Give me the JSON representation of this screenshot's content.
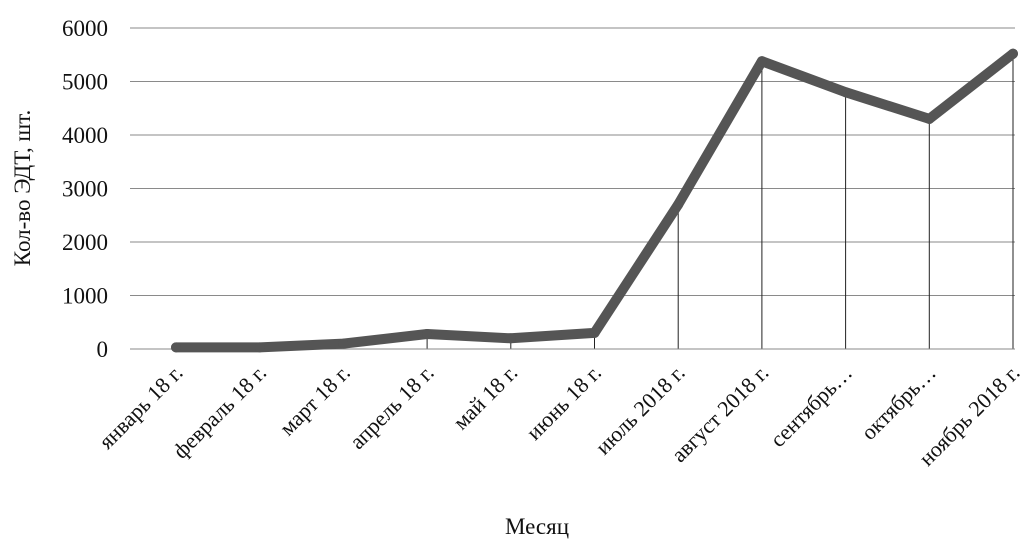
{
  "chart_data": {
    "type": "line",
    "title": "",
    "xlabel": "Месяц",
    "ylabel": "Кол-во ЭДТ, шт.",
    "ylim": [
      0,
      6000
    ],
    "yticks": [
      0,
      1000,
      2000,
      3000,
      4000,
      5000,
      6000
    ],
    "grid": {
      "horizontal": true,
      "drop_lines": true
    },
    "categories": [
      "январь 18 г.",
      "февраль 18 г.",
      "март 18 г.",
      "апрель 18 г.",
      "май 18 г.",
      "июнь 18 г.",
      "июль 2018 г.",
      "август 2018 г.",
      "сентябрь…",
      "октябрь…",
      "ноябрь 2018 г."
    ],
    "series": [
      {
        "values": [
          30,
          30,
          100,
          280,
          200,
          300,
          2700,
          5380,
          4800,
          4300,
          5520
        ],
        "color": "#555555"
      }
    ]
  }
}
